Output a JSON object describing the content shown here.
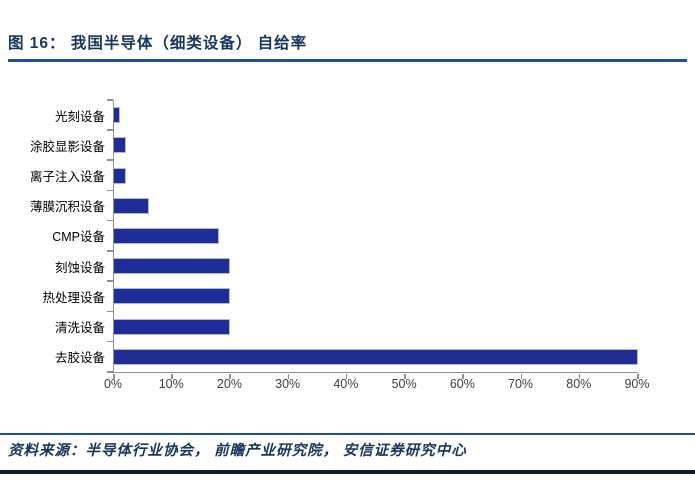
{
  "header": {
    "title": "图 16： 我国半导体（细类设备） 自给率"
  },
  "chart_data": {
    "type": "bar",
    "orientation": "horizontal",
    "title": "我国半导体（细类设备）自给率",
    "categories": [
      "光刻设备",
      "涂胶显影设备",
      "离子注入设备",
      "薄膜沉积设备",
      "CMP设备",
      "刻蚀设备",
      "热处理设备",
      "清洗设备",
      "去胶设备"
    ],
    "values": [
      1,
      2,
      2,
      6,
      18,
      20,
      20,
      20,
      90
    ],
    "unit": "%",
    "xlabel": "",
    "ylabel": "",
    "xlim": [
      0,
      90
    ],
    "x_ticks": [
      0,
      10,
      20,
      30,
      40,
      50,
      60,
      70,
      80,
      90
    ],
    "x_tick_labels": [
      "0%",
      "10%",
      "20%",
      "30%",
      "40%",
      "50%",
      "60%",
      "70%",
      "80%",
      "90%"
    ],
    "grid": "off",
    "legend": "none"
  },
  "footer": {
    "source_label": "资料来源：",
    "source_text": "半导体行业协会， 前瞻产业研究院， 安信证券研究中心"
  },
  "colors": {
    "bar": "#1F2E96",
    "bar_border": "#AFB9E6",
    "title_text": "#17365D",
    "accent_line": "#1F4E9B",
    "bottom_line": "#151C30",
    "axis": "#909090",
    "tick_label": "#3F3F3F",
    "category_label": "#000000"
  }
}
